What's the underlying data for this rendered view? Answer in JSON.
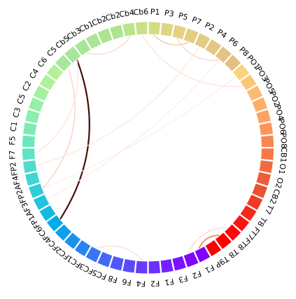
{
  "channels": [
    {
      "label": "Cb2",
      "color": "#aee391"
    },
    {
      "label": "Cb4",
      "color": "#bbe38c"
    },
    {
      "label": "Cb6",
      "color": "#c8e187"
    },
    {
      "label": "P1",
      "color": "#d3dd83"
    },
    {
      "label": "P3",
      "color": "#dcd882"
    },
    {
      "label": "P5",
      "color": "#e1d382"
    },
    {
      "label": "P7",
      "color": "#e3ce83"
    },
    {
      "label": "P2",
      "color": "#e4ca84"
    },
    {
      "label": "P4",
      "color": "#e5c684"
    },
    {
      "label": "P6",
      "color": "#e6c284"
    },
    {
      "label": "P8",
      "color": "#e5be81"
    },
    {
      "label": "PO1",
      "color": "#fcd27e"
    },
    {
      "label": "PO3",
      "color": "#fcc679"
    },
    {
      "label": "PO5",
      "color": "#fcba72"
    },
    {
      "label": "PO2",
      "color": "#fdae69"
    },
    {
      "label": "PO4",
      "color": "#fda262"
    },
    {
      "label": "PO6",
      "color": "#fc955a"
    },
    {
      "label": "PO8",
      "color": "#fa8751"
    },
    {
      "label": "CB1",
      "color": "#f67948"
    },
    {
      "label": "O1",
      "color": "#f26b40"
    },
    {
      "label": "O2",
      "color": "#ee5e38"
    },
    {
      "label": "CB2",
      "color": "#ea5032"
    },
    {
      "label": "T7",
      "color": "#f03a26"
    },
    {
      "label": "T8",
      "color": "#f5281c"
    },
    {
      "label": "FT7",
      "color": "#fb1412"
    },
    {
      "label": "FT8",
      "color": "#ff060b"
    },
    {
      "label": "T8",
      "color": "#ff0000"
    },
    {
      "label": "T9P",
      "color": "#ff0000"
    },
    {
      "label": "F1",
      "color": "#7f00ff"
    },
    {
      "label": "F2",
      "color": "#7d06ff"
    },
    {
      "label": "F3",
      "color": "#7a12ff"
    },
    {
      "label": "F1",
      "color": "#7420ff"
    },
    {
      "label": "F2",
      "color": "#6d2efe"
    },
    {
      "label": "F4",
      "color": "#653cfd"
    },
    {
      "label": "F6",
      "color": "#5b4afc"
    },
    {
      "label": "F8",
      "color": "#5058fa"
    },
    {
      "label": "FC5",
      "color": "#4467f8"
    },
    {
      "label": "FC3",
      "color": "#3775f5"
    },
    {
      "label": "FC1",
      "color": "#2983f2"
    },
    {
      "label": "FC2",
      "color": "#1b91ee"
    },
    {
      "label": "FC4",
      "color": "#0d9feb"
    },
    {
      "label": "FC6",
      "color": "#00ace7"
    },
    {
      "label": "FP1",
      "color": "#11bae1"
    },
    {
      "label": "AF3",
      "color": "#21c4dc"
    },
    {
      "label": "FP2",
      "color": "#30cdd7"
    },
    {
      "label": "AF4",
      "color": "#40d5d1"
    },
    {
      "label": "FP2",
      "color": "#50dccb"
    },
    {
      "label": "F7",
      "color": "#60e2c4"
    },
    {
      "label": "F5",
      "color": "#6fe7bd"
    },
    {
      "label": "C1",
      "color": "#7eebb6"
    },
    {
      "label": "C3",
      "color": "#8beeae"
    },
    {
      "label": "C5",
      "color": "#97f0a7"
    },
    {
      "label": "C2",
      "color": "#a2f19f"
    },
    {
      "label": "C4",
      "color": "#adf199"
    },
    {
      "label": "C6",
      "color": "#b6f094"
    },
    {
      "label": "C5",
      "color": "#a4e89c"
    },
    {
      "label": "Cb5",
      "color": "#a6e69a"
    },
    {
      "label": "Cb3",
      "color": "#a8e597"
    },
    {
      "label": "Cb1",
      "color": "#aae494"
    },
    {
      "label": "Cb2",
      "color": "#ace492"
    }
  ],
  "connections": [
    {
      "from": 41,
      "to": 56,
      "color": "#4a0d0d",
      "strength": 1.0
    },
    {
      "from": 26,
      "to": 28,
      "color": "#ee8a64",
      "strength": 0.75
    },
    {
      "from": 3,
      "to": 6,
      "color": "#f5c8b8",
      "strength": 0.45
    },
    {
      "from": 5,
      "to": 9,
      "color": "#f9d6ca",
      "strength": 0.35
    },
    {
      "from": 1,
      "to": 57,
      "color": "#f9d6ca",
      "strength": 0.35
    },
    {
      "from": 2,
      "to": 12,
      "color": "#fbe2d8",
      "strength": 0.3
    },
    {
      "from": 44,
      "to": 55,
      "color": "#f7d0c2",
      "strength": 0.35
    },
    {
      "from": 33,
      "to": 37,
      "color": "#f9dcd0",
      "strength": 0.3
    },
    {
      "from": 46,
      "to": 7,
      "color": "#fbe4dc",
      "strength": 0.25
    },
    {
      "from": 43,
      "to": 9,
      "color": "#fde9e2",
      "strength": 0.2
    },
    {
      "from": 44,
      "to": 11,
      "color": "#fdece6",
      "strength": 0.2
    },
    {
      "from": 25,
      "to": 29,
      "color": "#fad8cc",
      "strength": 0.3
    },
    {
      "from": 56,
      "to": 47,
      "color": "#fbe0d6",
      "strength": 0.25
    }
  ]
}
